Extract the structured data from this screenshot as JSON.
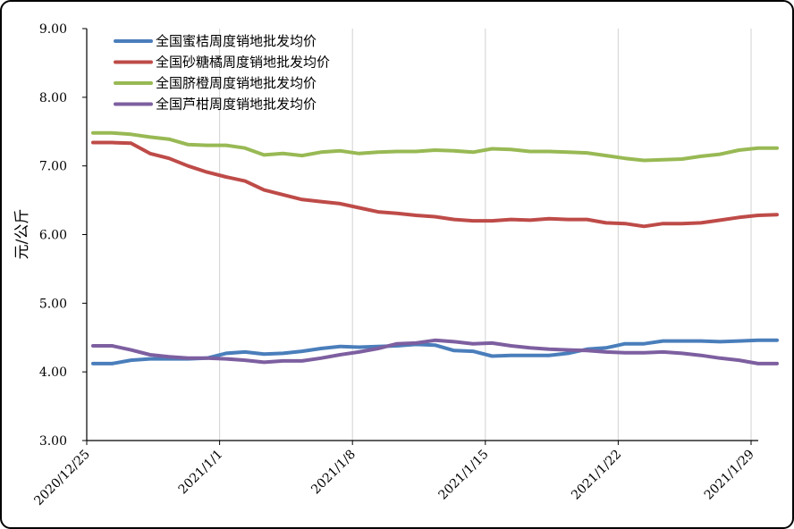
{
  "chart_data": {
    "type": "line",
    "title": "",
    "xlabel": "",
    "ylabel": "元/公斤",
    "ylim": [
      3.0,
      9.0
    ],
    "yticks": [
      "3.00",
      "4.00",
      "5.00",
      "6.00",
      "7.00",
      "8.00",
      "9.00"
    ],
    "grid": "vertical",
    "legend": "top-left",
    "x": [
      "2020/12/25",
      "2020/12/26",
      "2020/12/27",
      "2020/12/28",
      "2020/12/29",
      "2020/12/30",
      "2020/12/31",
      "2021/1/1",
      "2021/1/2",
      "2021/1/3",
      "2021/1/4",
      "2021/1/5",
      "2021/1/6",
      "2021/1/7",
      "2021/1/8",
      "2021/1/9",
      "2021/1/10",
      "2021/1/11",
      "2021/1/12",
      "2021/1/13",
      "2021/1/14",
      "2021/1/15",
      "2021/1/16",
      "2021/1/17",
      "2021/1/18",
      "2021/1/19",
      "2021/1/20",
      "2021/1/21",
      "2021/1/22",
      "2021/1/23",
      "2021/1/24",
      "2021/1/25",
      "2021/1/26",
      "2021/1/27",
      "2021/1/28",
      "2021/1/29",
      "2021/1/30"
    ],
    "xtick_labels": [
      "2020/12/25",
      "2021/1/1",
      "2021/1/8",
      "2021/1/15",
      "2021/1/22",
      "2021/1/29"
    ],
    "series": [
      {
        "name": "全国蜜桔周度销地批发均价",
        "color": "#4a7ebb",
        "values": [
          4.12,
          4.12,
          4.17,
          4.19,
          4.19,
          4.19,
          4.2,
          4.27,
          4.29,
          4.26,
          4.27,
          4.3,
          4.34,
          4.37,
          4.36,
          4.37,
          4.38,
          4.4,
          4.39,
          4.31,
          4.3,
          4.23,
          4.24,
          4.24,
          4.24,
          4.27,
          4.33,
          4.35,
          4.41,
          4.41,
          4.45,
          4.45,
          4.45,
          4.44,
          4.45,
          4.46,
          4.46
        ]
      },
      {
        "name": "全国砂糖橘周度销地批发均价",
        "color": "#be4b48",
        "values": [
          7.34,
          7.34,
          7.33,
          7.18,
          7.11,
          7.0,
          6.91,
          6.84,
          6.78,
          6.65,
          6.58,
          6.51,
          6.48,
          6.45,
          6.39,
          6.33,
          6.31,
          6.28,
          6.26,
          6.22,
          6.2,
          6.2,
          6.22,
          6.21,
          6.23,
          6.22,
          6.22,
          6.17,
          6.16,
          6.12,
          6.16,
          6.16,
          6.17,
          6.21,
          6.25,
          6.28,
          6.29
        ]
      },
      {
        "name": "全国脐橙周度销地批发均价",
        "color": "#98b954",
        "values": [
          7.48,
          7.48,
          7.46,
          7.42,
          7.39,
          7.31,
          7.3,
          7.3,
          7.26,
          7.16,
          7.18,
          7.15,
          7.2,
          7.22,
          7.18,
          7.2,
          7.21,
          7.21,
          7.23,
          7.22,
          7.2,
          7.25,
          7.24,
          7.21,
          7.21,
          7.2,
          7.19,
          7.15,
          7.11,
          7.08,
          7.09,
          7.1,
          7.14,
          7.17,
          7.23,
          7.26,
          7.26
        ]
      },
      {
        "name": "全国芦柑周度销地批发均价",
        "color": "#7d5fa0",
        "values": [
          4.38,
          4.38,
          4.32,
          4.25,
          4.22,
          4.2,
          4.2,
          4.19,
          4.17,
          4.14,
          4.16,
          4.16,
          4.2,
          4.25,
          4.29,
          4.34,
          4.41,
          4.42,
          4.46,
          4.44,
          4.41,
          4.42,
          4.38,
          4.35,
          4.33,
          4.32,
          4.31,
          4.29,
          4.28,
          4.28,
          4.29,
          4.27,
          4.24,
          4.2,
          4.17,
          4.12,
          4.12
        ]
      }
    ]
  }
}
